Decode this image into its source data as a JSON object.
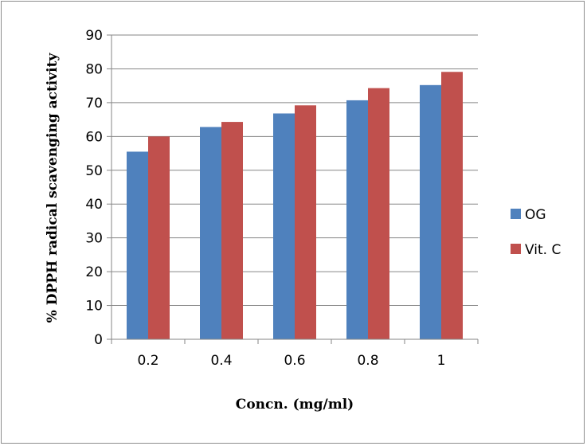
{
  "chart_data": {
    "type": "bar",
    "categories": [
      "0.2",
      "0.4",
      "0.6",
      "0.8",
      "1"
    ],
    "series": [
      {
        "name": "OG",
        "values": [
          55.5,
          62.8,
          66.8,
          70.7,
          75.2
        ],
        "color": "#4f81bd"
      },
      {
        "name": "Vit. C",
        "values": [
          60.0,
          64.3,
          69.2,
          74.3,
          79.1
        ],
        "color": "#c0504d"
      }
    ],
    "title": "",
    "xlabel": "Concn. (mg/ml)",
    "ylabel": "% DPPH radical scavenging activity",
    "ylim": [
      0,
      90
    ],
    "yticks": [
      0,
      10,
      20,
      30,
      40,
      50,
      60,
      70,
      80,
      90
    ],
    "grid": true,
    "legend_position": "right"
  }
}
